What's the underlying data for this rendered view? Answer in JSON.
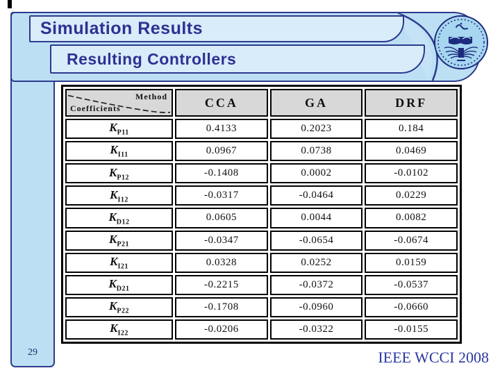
{
  "slide": {
    "title": "Simulation Results",
    "subtitle": "Resulting Controllers",
    "page_number": "29",
    "footer": "IEEE WCCI 2008"
  },
  "table": {
    "corner": {
      "top_label": "Method",
      "bottom_label": "Coefficients"
    },
    "method_headers": [
      "CCA",
      "GA",
      "DRF"
    ],
    "rows": [
      {
        "base": "K",
        "sub": "P11",
        "values": [
          "0.4133",
          "0.2023",
          "0.184"
        ]
      },
      {
        "base": "K",
        "sub": "I11",
        "values": [
          "0.0967",
          "0.0738",
          "0.0469"
        ]
      },
      {
        "base": "K",
        "sub": "P12",
        "values": [
          "-0.1408",
          "0.0002",
          "-0.0102"
        ]
      },
      {
        "base": "K",
        "sub": "I12",
        "values": [
          "-0.0317",
          "-0.0464",
          "0.0229"
        ]
      },
      {
        "base": "K",
        "sub": "D12",
        "values": [
          "0.0605",
          "0.0044",
          "0.0082"
        ]
      },
      {
        "base": "K",
        "sub": "P21",
        "values": [
          "-0.0347",
          "-0.0654",
          "-0.0674"
        ]
      },
      {
        "base": "K",
        "sub": "I21",
        "values": [
          "0.0328",
          "0.0252",
          "0.0159"
        ]
      },
      {
        "base": "K",
        "sub": "D21",
        "values": [
          "-0.2215",
          "-0.0372",
          "-0.0537"
        ]
      },
      {
        "base": "K",
        "sub": "P22",
        "values": [
          "-0.1708",
          "-0.0960",
          "-0.0660"
        ]
      },
      {
        "base": "K",
        "sub": "I22",
        "values": [
          "-0.0206",
          "-0.0322",
          "-0.0155"
        ]
      }
    ]
  },
  "icons": {
    "logo": "university-of-tehran-emblem"
  },
  "colors": {
    "title_text": "#2E3192",
    "border_blue": "#2C3A8C",
    "banner_fill": "#BCDFF4",
    "box_fill": "#D9ECFA",
    "logo_fill": "#A7D6F0",
    "table_header_fill": "#D8D8D8",
    "table_border": "#000000",
    "footer_text": "#2B38A0"
  }
}
